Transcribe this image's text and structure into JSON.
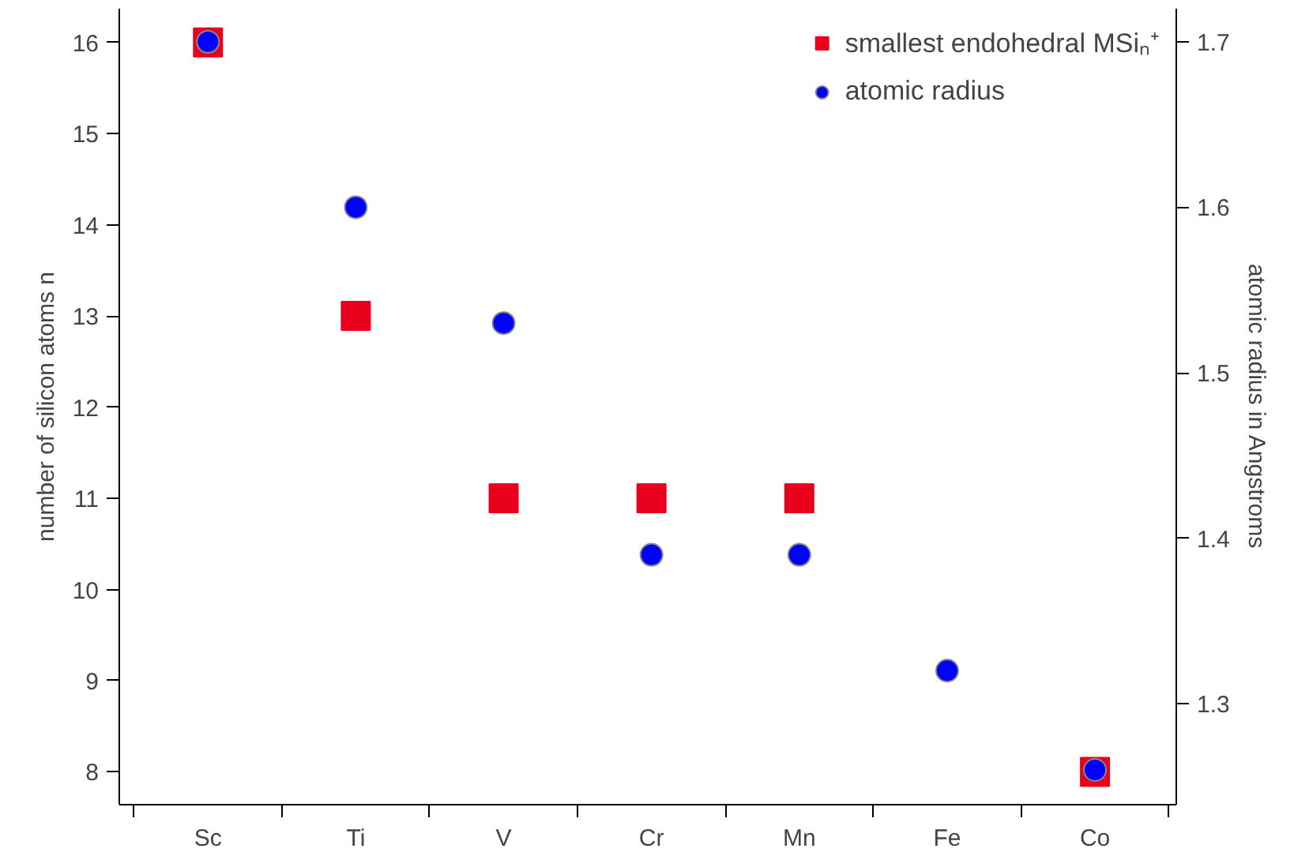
{
  "chart_data": {
    "type": "scatter",
    "categories": [
      "Sc",
      "Ti",
      "V",
      "Cr",
      "Mn",
      "Fe",
      "Co"
    ],
    "ylabel": "number of silicon atoms n",
    "y2label": "atomic radius in Angstroms",
    "ylim": [
      7.64,
      16.37
    ],
    "yticks": [
      8,
      9,
      10,
      11,
      12,
      13,
      14,
      15,
      16
    ],
    "y2lim": [
      1.239,
      1.72
    ],
    "y2ticks": [
      1.3,
      1.4,
      1.5,
      1.6,
      1.7
    ],
    "series": [
      {
        "name": "smallest endohedral MSiₙ⁺",
        "color": "#e8001c",
        "marker": "square",
        "values": [
          16,
          13,
          11,
          11,
          11,
          null,
          8
        ]
      },
      {
        "name": "atomic radius",
        "color": "#0000ff",
        "marker": "circle",
        "axis": "y2",
        "values": [
          1.7,
          1.6,
          1.53,
          1.39,
          1.39,
          1.32,
          1.26
        ]
      }
    ],
    "legend": "top right",
    "grid": false
  }
}
